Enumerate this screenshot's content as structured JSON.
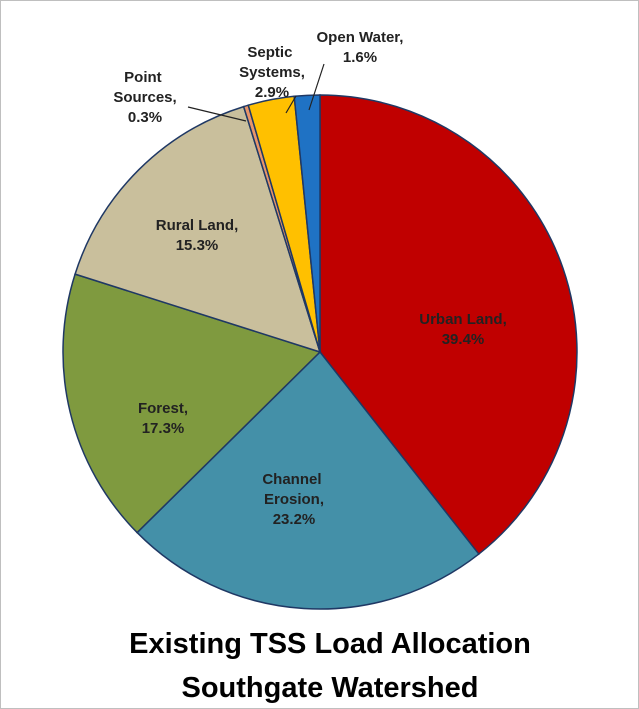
{
  "chart_data": {
    "type": "pie",
    "title": "Existing TSS Load Allocation",
    "subtitle": "Southgate Watershed",
    "categories": [
      "Urban Land,",
      "Channel Erosion,",
      "Forest,",
      "Rural Land,",
      "Point Sources,",
      "Septic Systems,",
      "Open Water,"
    ],
    "values": [
      39.4,
      23.2,
      17.3,
      15.3,
      0.3,
      2.9,
      1.6
    ],
    "value_labels": [
      "39.4%",
      "23.2%",
      "17.3%",
      "15.3%",
      "0.3%",
      "2.9%",
      "1.6%"
    ],
    "colors": [
      "#c00000",
      "#4490a8",
      "#7f9a3f",
      "#c9bf9c",
      "#e8956a",
      "#ffc000",
      "#1f72c4"
    ]
  }
}
